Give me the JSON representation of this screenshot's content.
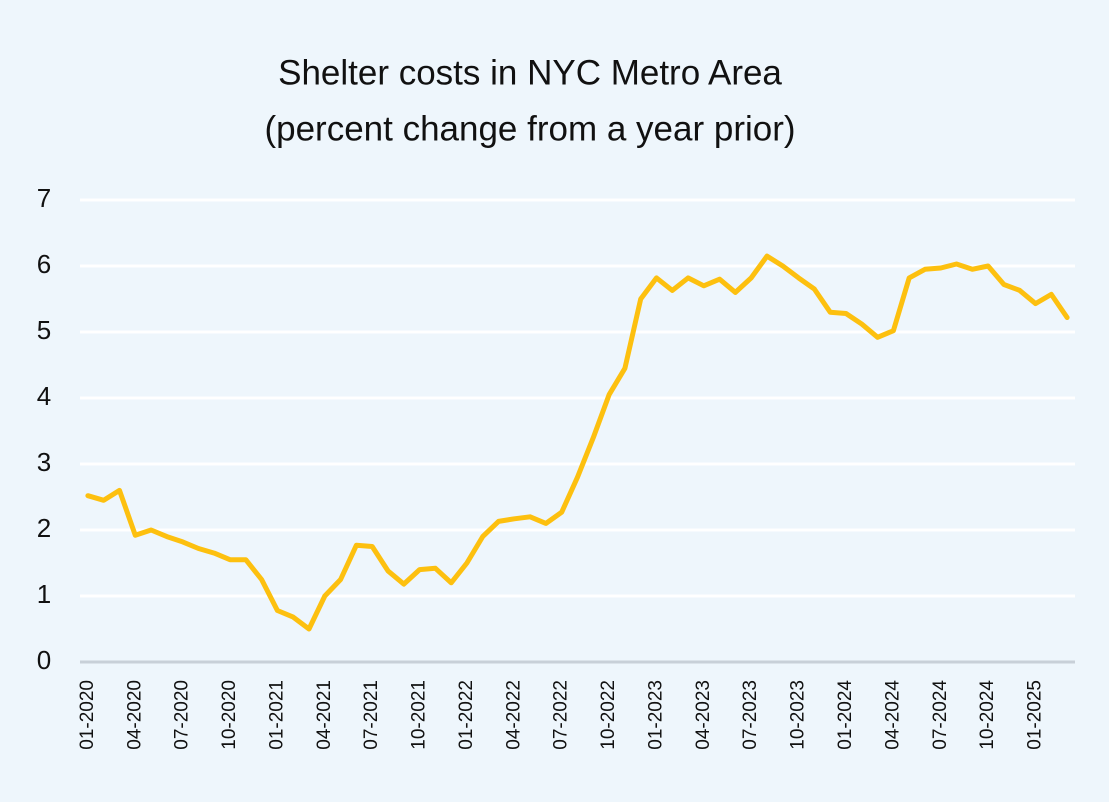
{
  "chart_data": {
    "type": "line",
    "title": [
      "Shelter costs in NYC Metro Area",
      "(percent change from a year prior)"
    ],
    "categories": [
      "01-2020",
      null,
      null,
      "04-2020",
      null,
      null,
      "07-2020",
      null,
      null,
      "10-2020",
      null,
      null,
      "01-2021",
      null,
      null,
      "04-2021",
      null,
      null,
      "07-2021",
      null,
      null,
      "10-2021",
      null,
      null,
      "01-2022",
      null,
      null,
      "04-2022",
      null,
      null,
      "07-2022",
      null,
      null,
      "10-2022",
      null,
      null,
      "01-2023",
      null,
      null,
      "04-2023",
      null,
      null,
      "07-2023",
      null,
      null,
      "10-2023",
      null,
      null,
      "01-2024",
      null,
      null,
      "04-2024",
      null,
      null,
      "07-2024",
      null,
      null,
      "10-2024",
      null,
      null,
      "01-2025",
      null,
      null
    ],
    "series": [
      {
        "name": "Shelter",
        "color": "#fdc00f",
        "values": [
          2.52,
          2.45,
          2.6,
          1.92,
          2.0,
          1.9,
          1.82,
          1.72,
          1.65,
          1.55,
          1.55,
          1.25,
          0.78,
          0.68,
          0.5,
          1.0,
          1.25,
          1.77,
          1.75,
          1.38,
          1.18,
          1.4,
          1.42,
          1.2,
          1.5,
          1.9,
          2.13,
          2.17,
          2.2,
          2.1,
          2.27,
          2.8,
          3.4,
          4.05,
          4.45,
          5.5,
          5.82,
          5.63,
          5.82,
          5.7,
          5.8,
          5.6,
          5.82,
          6.15,
          6.0,
          5.82,
          5.65,
          5.3,
          5.28,
          5.12,
          4.92,
          5.02,
          5.82,
          5.95,
          5.97,
          6.03,
          5.95,
          6.0,
          5.72,
          5.63,
          5.43,
          5.57,
          5.22
        ]
      }
    ],
    "ylim": [
      0,
      7
    ],
    "yticks": [
      0,
      1,
      2,
      3,
      4,
      5,
      6,
      7
    ],
    "grid": true
  }
}
